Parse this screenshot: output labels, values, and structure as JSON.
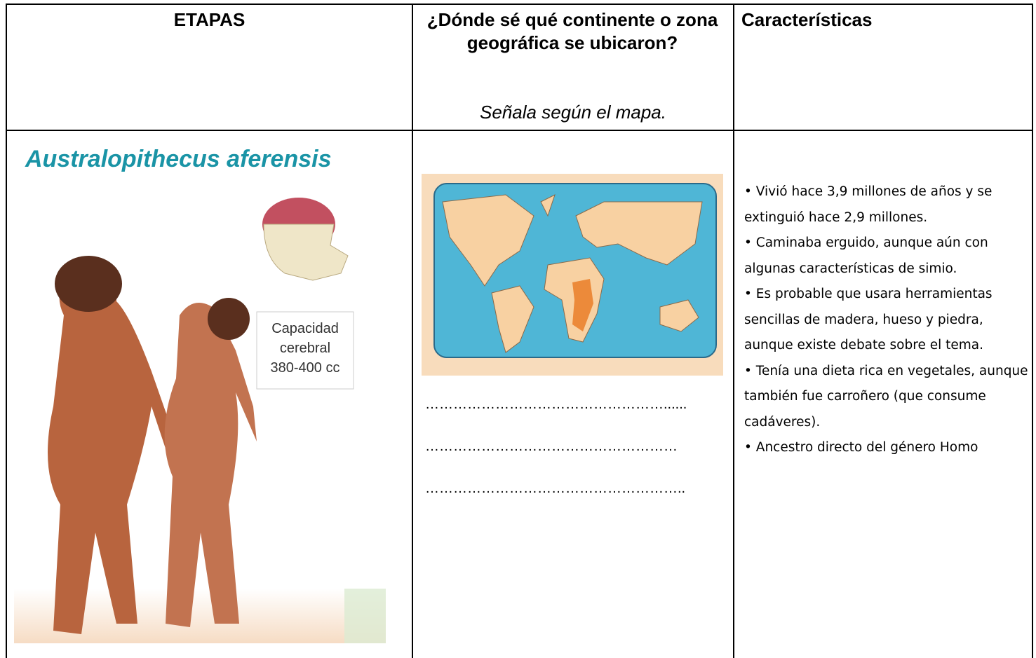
{
  "header": {
    "stage": "ETAPAS",
    "location_question": "¿Dónde sé qué continente o zona geográfica se ubicaron?",
    "location_instruction": "Señala según el mapa.",
    "features": "Características"
  },
  "row": {
    "stage_image": {
      "title": "Australopithecus aferensis",
      "brain_label": [
        "Capacidad",
        "cerebral",
        "380-400 cc"
      ]
    },
    "answer_lines": [
      "……………………………………………......",
      "………………………………………………",
      "……………………………………………….."
    ],
    "features": [
      "• Vivió hace 3,9 millones de años y se extinguió hace 2,9 millones.",
      "• Caminaba erguido, aunque aún con algunas características de simio.",
      "• Es probable que usara herramientas sencillas de madera, hueso y piedra, aunque existe debate sobre el tema.",
      " • Tenía una dieta rica en vegetales, aunque también fue carroñero (que consume cadáveres).",
      "• Ancestro directo del género Homo"
    ]
  }
}
